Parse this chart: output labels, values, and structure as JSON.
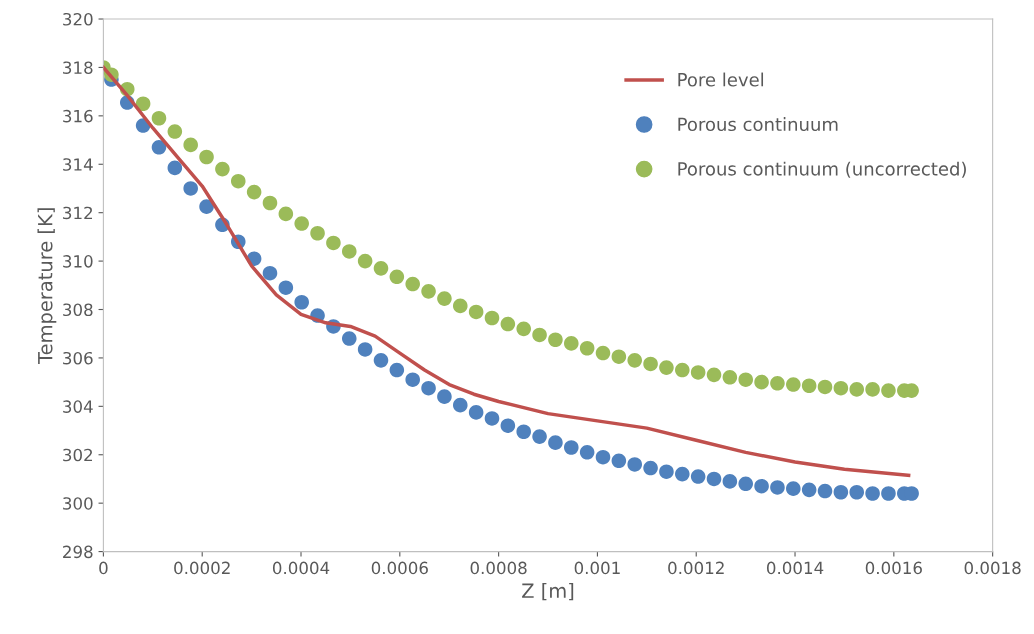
{
  "chart_data": {
    "type": "scatter",
    "xlabel": "Z [m]",
    "ylabel": "Temperature [K]",
    "xlim": [
      0,
      0.0018
    ],
    "xticks": [
      0,
      0.0002,
      0.0004,
      0.0006,
      0.0008,
      0.001,
      0.0012,
      0.0014,
      0.0016,
      0.0018
    ],
    "ylim": [
      298,
      320
    ],
    "yticks": [
      298,
      300,
      302,
      304,
      306,
      308,
      310,
      312,
      314,
      316,
      318,
      320
    ],
    "grid": false,
    "legend": "top right",
    "marker": "circle",
    "series": [
      {
        "name": "Pore level",
        "type": "line",
        "marker": "none",
        "color": "#c0504d",
        "line_style": "solid",
        "x": [
          0,
          5e-05,
          0.0001,
          0.00015,
          0.0002,
          0.00025,
          0.0003,
          0.00035,
          0.0004,
          0.00045,
          0.0005,
          0.00055,
          0.0006,
          0.00065,
          0.0007,
          0.00075,
          0.0008,
          0.0009,
          0.001,
          0.0011,
          0.0012,
          0.0013,
          0.0014,
          0.0015,
          0.00163
        ],
        "values": [
          318,
          316.8,
          315.5,
          314.3,
          313.1,
          311.5,
          309.8,
          308.6,
          307.8,
          307.45,
          307.3,
          306.9,
          306.2,
          305.5,
          304.9,
          304.5,
          304.2,
          303.7,
          303.4,
          303.1,
          302.6,
          302.1,
          301.7,
          301.4,
          301.15
        ]
      },
      {
        "name": "Porous continuum",
        "color": "#4f81bd",
        "x": [
          1.62e-05,
          4.83e-05,
          8.04e-05,
          0.0001125,
          0.0001446,
          0.0001767,
          0.0002088,
          0.0002409,
          0.000273,
          0.0003051,
          0.0003372,
          0.0003693,
          0.0004014,
          0.0004335,
          0.0004656,
          0.0004977,
          0.0005298,
          0.0005619,
          0.000594,
          0.0006261,
          0.0006582,
          0.0006903,
          0.0007224,
          0.0007545,
          0.0007866,
          0.0008187,
          0.0008508,
          0.0008829,
          0.000915,
          0.0009471,
          0.0009792,
          0.0010113,
          0.0010434,
          0.0010755,
          0.0011076,
          0.0011397,
          0.0011718,
          0.0012039,
          0.001236,
          0.0012681,
          0.0013002,
          0.0013323,
          0.0013644,
          0.0013965,
          0.0014286,
          0.0014607,
          0.0014928,
          0.0015249,
          0.001557,
          0.0015891,
          0.0016212,
          0.001636
        ],
        "values": [
          317.5,
          316.55,
          315.6,
          314.7,
          313.85,
          313.0,
          312.25,
          311.5,
          310.8,
          310.1,
          309.5,
          308.9,
          308.3,
          307.75,
          307.3,
          306.8,
          306.35,
          305.9,
          305.5,
          305.1,
          304.75,
          304.4,
          304.05,
          303.75,
          303.5,
          303.2,
          302.95,
          302.75,
          302.5,
          302.3,
          302.1,
          301.9,
          301.75,
          301.6,
          301.45,
          301.3,
          301.2,
          301.1,
          301.0,
          300.9,
          300.8,
          300.7,
          300.65,
          300.6,
          300.55,
          300.5,
          300.45,
          300.45,
          300.4,
          300.4,
          300.4,
          300.4
        ]
      },
      {
        "name": "Porous continuum (uncorrected)",
        "color": "#9bbb59",
        "x": [
          0,
          1.62e-05,
          4.83e-05,
          8.04e-05,
          0.0001125,
          0.0001446,
          0.0001767,
          0.0002088,
          0.0002409,
          0.000273,
          0.0003051,
          0.0003372,
          0.0003693,
          0.0004014,
          0.0004335,
          0.0004656,
          0.0004977,
          0.0005298,
          0.0005619,
          0.000594,
          0.0006261,
          0.0006582,
          0.0006903,
          0.0007224,
          0.0007545,
          0.0007866,
          0.0008187,
          0.0008508,
          0.0008829,
          0.000915,
          0.0009471,
          0.0009792,
          0.0010113,
          0.0010434,
          0.0010755,
          0.0011076,
          0.0011397,
          0.0011718,
          0.0012039,
          0.001236,
          0.0012681,
          0.0013002,
          0.0013323,
          0.0013644,
          0.0013965,
          0.0014286,
          0.0014607,
          0.0014928,
          0.0015249,
          0.001557,
          0.0015891,
          0.0016212,
          0.001636
        ],
        "values": [
          318.0,
          317.7,
          317.1,
          316.5,
          315.9,
          315.35,
          314.8,
          314.3,
          313.8,
          313.3,
          312.85,
          312.4,
          311.95,
          311.55,
          311.15,
          310.75,
          310.4,
          310.0,
          309.7,
          309.35,
          309.05,
          308.75,
          308.45,
          308.15,
          307.9,
          307.65,
          307.4,
          307.2,
          306.95,
          306.75,
          306.6,
          306.4,
          306.2,
          306.05,
          305.9,
          305.75,
          305.6,
          305.5,
          305.4,
          305.3,
          305.2,
          305.1,
          305.0,
          304.95,
          304.9,
          304.85,
          304.8,
          304.75,
          304.7,
          304.7,
          304.65,
          304.65,
          304.65
        ]
      }
    ]
  }
}
